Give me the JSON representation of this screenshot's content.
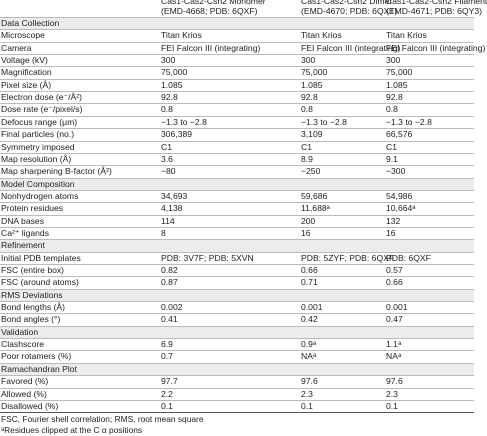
{
  "table": {
    "columns": [
      {
        "name": "Cas1-Cas2-Csn2 Monomer",
        "ids": "(EMD-4668; PDB: 6QXF)"
      },
      {
        "name": "Cas1-Cas2-Csn2 Dimer",
        "ids": "(EMD-4670; PDB: 6QXT)"
      },
      {
        "name": "Cas1-Cas2-Csn2 Filament",
        "ids": "(EMD-4671; PDB: 6QY3)"
      }
    ],
    "sections": [
      {
        "title": "Data Collection",
        "rows": [
          [
            "Microscope",
            "Titan Krios",
            "Titan Krios",
            "Titan Krios"
          ],
          [
            "Camera",
            "FEI Falcon III (integrating)",
            "FEI Falcon III (integrating)",
            "FEI Falcon III (integrating)"
          ],
          [
            "Voltage (kV)",
            "300",
            "300",
            "300"
          ],
          [
            "Magnification",
            "75,000",
            "75,000",
            "75,000"
          ],
          [
            "Pixel size (Å)",
            "1.085",
            "1.085",
            "1.085"
          ],
          [
            "Electron dose (e⁻/Å²)",
            "92.8",
            "92.8",
            "92.8"
          ],
          [
            "Dose rate (e⁻/pixel/s)",
            "0.8",
            "0.8",
            "0.8"
          ],
          [
            "Defocus range (μm)",
            "−1.3 to −2.8",
            "−1.3 to −2.8",
            "−1.3 to −2.8"
          ],
          [
            "Final particles (no.)",
            "306,389",
            "3,109",
            "66,576"
          ],
          [
            "Symmetry imposed",
            "C1",
            "C1",
            "C1"
          ],
          [
            "Map resolution (Å)",
            "3.6",
            "8.9",
            "9.1"
          ],
          [
            "Map sharpening B-factor (Å²)",
            "−80",
            "−250",
            "−300"
          ]
        ]
      },
      {
        "title": "Model Composition",
        "rows": [
          [
            "Nonhydrogen atoms",
            "34,693",
            "59,686",
            "54,986"
          ],
          [
            "Protein residues",
            "4,138",
            "11,688ᵃ",
            "10,664ᵃ"
          ],
          [
            "DNA bases",
            "114",
            "200",
            "132"
          ],
          [
            "Ca²⁺ ligands",
            "8",
            "16",
            "16"
          ]
        ]
      },
      {
        "title": "Refinement",
        "rows": [
          [
            "Initial PDB templates",
            "PDB: 3V7F; PDB: 5XVN",
            "PDB: 5ZYF; PDB: 6QXF",
            "PDB: 6QXF"
          ],
          [
            "FSC (entire box)",
            "0.82",
            "0.66",
            "0.57"
          ],
          [
            "FSC (around atoms)",
            "0.87",
            "0.71",
            "0.66"
          ]
        ]
      },
      {
        "title": "RMS Deviations",
        "rows": [
          [
            "Bond lengths (Å)",
            "0.002",
            "0.001",
            "0.001"
          ],
          [
            "Bond angles (°)",
            "0.41",
            "0.42",
            "0.47"
          ]
        ]
      },
      {
        "title": "Validation",
        "rows": [
          [
            "Clashscore",
            "6.9",
            "0.9ᵃ",
            "1.1ᵃ"
          ],
          [
            "Poor rotamers (%)",
            "0.7",
            "NAᵃ",
            "NAᵃ"
          ]
        ]
      },
      {
        "title": "Ramachandran Plot",
        "rows": [
          [
            "Favored (%)",
            "97.7",
            "97.6",
            "97.6"
          ],
          [
            "Allowed (%)",
            "2.2",
            "2.3",
            "2.3"
          ],
          [
            "Disallowed (%)",
            "0.1",
            "0.1",
            "0.1"
          ]
        ]
      }
    ],
    "footnotes": [
      "FSC, Fourier shell correlation; RMS, root mean square",
      "ᵃResidues clipped at the C α positions"
    ]
  }
}
